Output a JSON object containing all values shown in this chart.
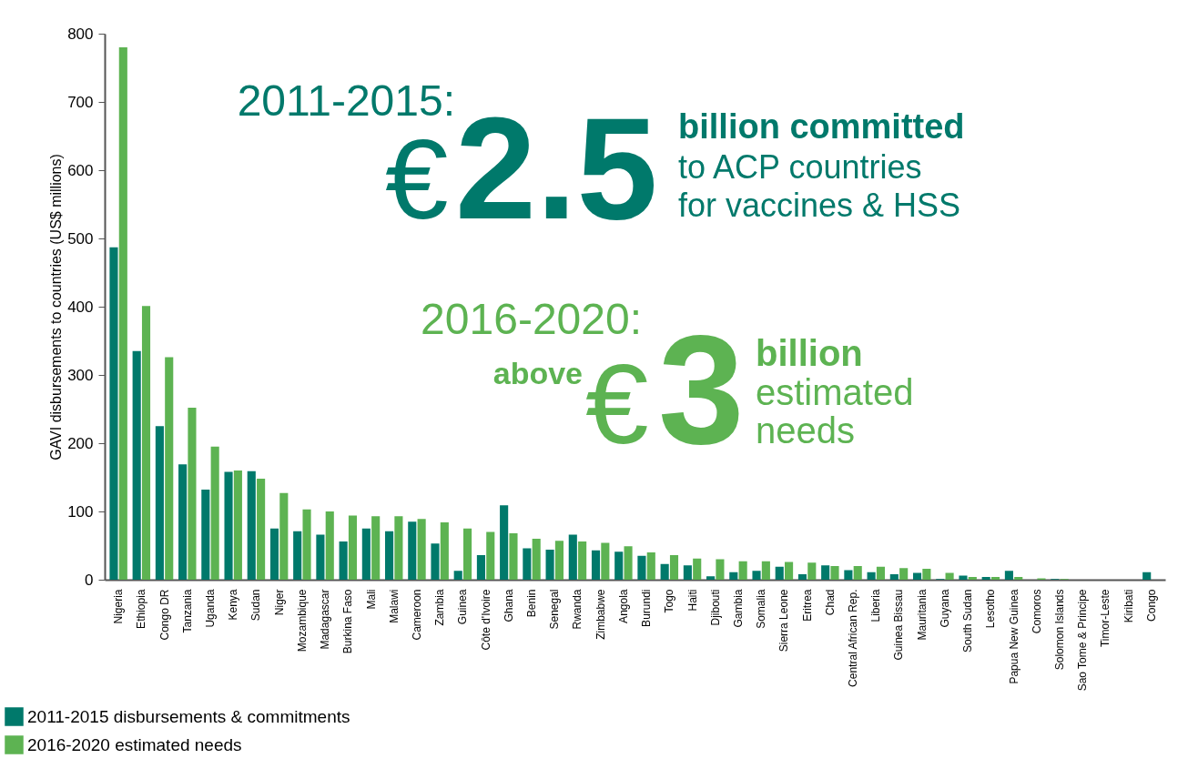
{
  "chart_data": {
    "type": "bar",
    "ylabel": "GAVI disbursements to countries (US$ millions)",
    "categories": [
      "Nigeria",
      "Ethiopia",
      "Congo DR",
      "Tanzania",
      "Uganda",
      "Kenya",
      "Sudan",
      "Niger",
      "Mozambique",
      "Madagascar",
      "Burkina Faso",
      "Mali",
      "Malawi",
      "Cameroon",
      "Zambia",
      "Guinea",
      "Côte d'Ivoire",
      "Ghana",
      "Benin",
      "Senegal",
      "Rwanda",
      "Zimbabwe",
      "Angola",
      "Burundi",
      "Togo",
      "Haiti",
      "Djibouti",
      "Gambia",
      "Somalia",
      "Sierra Leone",
      "Eritrea",
      "Chad",
      "Central African Rep.",
      "Liberia",
      "Guinea Bissau",
      "Mauritania",
      "Guyana",
      "South Sudan",
      "Lesotho",
      "Papua New Guinea",
      "Comoros",
      "Solomon Islands",
      "Sao Tome & Principe",
      "Timor-Leste",
      "Kiribati",
      "Congo"
    ],
    "series": [
      {
        "name": "2011-2015 disbursements & commitments",
        "color": "#00796b",
        "values": [
          487,
          335,
          225,
          169,
          132,
          158,
          159,
          75,
          71,
          66,
          56,
          75,
          71,
          85,
          53,
          13,
          36,
          109,
          46,
          44,
          66,
          43,
          41,
          35,
          23,
          21,
          5,
          11,
          13,
          19,
          8,
          21,
          14,
          11,
          8,
          10,
          1,
          6,
          4,
          13,
          0,
          1,
          0,
          0,
          0,
          11
        ]
      },
      {
        "name": "2016-2020 estimated needs",
        "color": "#5db352",
        "values": [
          780,
          401,
          326,
          252,
          195,
          160,
          148,
          127,
          103,
          100,
          94,
          93,
          93,
          89,
          84,
          75,
          70,
          68,
          60,
          57,
          56,
          54,
          49,
          40,
          36,
          31,
          30,
          27,
          27,
          26,
          25,
          20,
          20,
          19,
          17,
          16,
          10,
          4,
          4,
          4,
          2,
          1,
          0,
          0,
          0,
          0
        ]
      }
    ],
    "ylim": [
      0,
      800
    ],
    "yticks": [
      0,
      100,
      200,
      300,
      400,
      500,
      600,
      700,
      800
    ],
    "grid": false,
    "legend": "bottom left",
    "annotations": [
      "2011-2015:",
      "€",
      "2.5",
      "billion committed",
      "to ACP countries",
      "for vaccines & HSS",
      "2016-2020:",
      "above",
      "€",
      "3",
      "billion",
      "estimated",
      "needs"
    ]
  }
}
